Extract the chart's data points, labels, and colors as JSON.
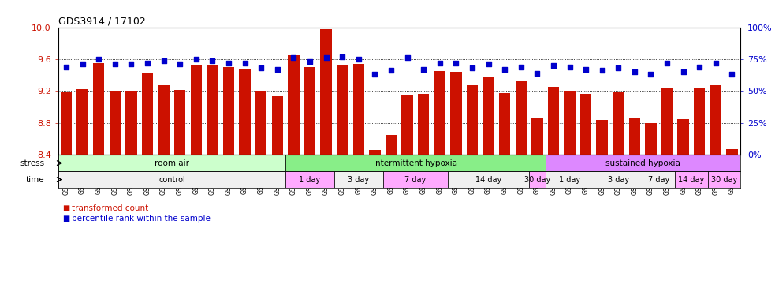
{
  "title": "GDS3914 / 17102",
  "samples": [
    "GSM215660",
    "GSM215661",
    "GSM215662",
    "GSM215663",
    "GSM215664",
    "GSM215665",
    "GSM215666",
    "GSM215667",
    "GSM215668",
    "GSM215669",
    "GSM215670",
    "GSM215671",
    "GSM215672",
    "GSM215673",
    "GSM215674",
    "GSM215675",
    "GSM215676",
    "GSM215677",
    "GSM215678",
    "GSM215679",
    "GSM215680",
    "GSM215681",
    "GSM215682",
    "GSM215683",
    "GSM215684",
    "GSM215685",
    "GSM215686",
    "GSM215687",
    "GSM215688",
    "GSM215689",
    "GSM215690",
    "GSM215691",
    "GSM215692",
    "GSM215693",
    "GSM215694",
    "GSM215695",
    "GSM215696",
    "GSM215697",
    "GSM215698",
    "GSM215699",
    "GSM215700",
    "GSM215701"
  ],
  "red_values": [
    9.18,
    9.22,
    9.55,
    9.2,
    9.2,
    9.43,
    9.27,
    9.21,
    9.52,
    9.53,
    9.5,
    9.48,
    9.2,
    9.13,
    9.65,
    9.5,
    9.98,
    9.53,
    9.54,
    8.46,
    8.65,
    9.14,
    9.16,
    9.45,
    9.44,
    9.27,
    9.38,
    9.17,
    9.32,
    8.86,
    9.25,
    9.2,
    9.16,
    8.84,
    9.19,
    8.87,
    8.8,
    9.24,
    8.85,
    9.24,
    9.27,
    8.47
  ],
  "blue_values": [
    69,
    71,
    75,
    71,
    71,
    72,
    74,
    71,
    75,
    74,
    72,
    72,
    68,
    67,
    76,
    73,
    76,
    77,
    75,
    63,
    66,
    76,
    67,
    72,
    72,
    68,
    71,
    67,
    69,
    64,
    70,
    69,
    67,
    66,
    68,
    65,
    63,
    72,
    65,
    69,
    72,
    63
  ],
  "ylim_left": [
    8.4,
    10.0
  ],
  "ylim_right": [
    0,
    100
  ],
  "yticks_left": [
    8.4,
    8.8,
    9.2,
    9.6,
    10.0
  ],
  "yticks_right": [
    0,
    25,
    50,
    75,
    100
  ],
  "ytick_labels_right": [
    "0%",
    "25%",
    "50%",
    "75%",
    "100%"
  ],
  "bar_color": "#cc1100",
  "dot_color": "#0000cc",
  "stress_groups": [
    {
      "label": "room air",
      "start": 0,
      "end": 14,
      "color": "#ccffcc"
    },
    {
      "label": "intermittent hypoxia",
      "start": 14,
      "end": 30,
      "color": "#88ee88"
    },
    {
      "label": "sustained hypoxia",
      "start": 30,
      "end": 42,
      "color": "#dd88ff"
    }
  ],
  "time_groups": [
    {
      "label": "control",
      "start": 0,
      "end": 14,
      "color": "#f0f0f0"
    },
    {
      "label": "1 day",
      "start": 14,
      "end": 17,
      "color": "#ffaaff"
    },
    {
      "label": "3 day",
      "start": 17,
      "end": 20,
      "color": "#f0f0f0"
    },
    {
      "label": "7 day",
      "start": 20,
      "end": 24,
      "color": "#ffaaff"
    },
    {
      "label": "14 day",
      "start": 24,
      "end": 29,
      "color": "#f0f0f0"
    },
    {
      "label": "30 day",
      "start": 29,
      "end": 30,
      "color": "#ffaaff"
    },
    {
      "label": "1 day",
      "start": 30,
      "end": 33,
      "color": "#f0f0f0"
    },
    {
      "label": "3 day",
      "start": 33,
      "end": 36,
      "color": "#f0f0f0"
    },
    {
      "label": "7 day",
      "start": 36,
      "end": 38,
      "color": "#f0f0f0"
    },
    {
      "label": "14 day",
      "start": 38,
      "end": 40,
      "color": "#ffaaff"
    },
    {
      "label": "30 day",
      "start": 40,
      "end": 42,
      "color": "#ffaaff"
    }
  ],
  "legend_items": [
    {
      "label": "transformed count",
      "color": "#cc1100"
    },
    {
      "label": "percentile rank within the sample",
      "color": "#0000cc"
    }
  ],
  "stress_label": "stress",
  "time_label": "time",
  "background_color": "#ffffff"
}
